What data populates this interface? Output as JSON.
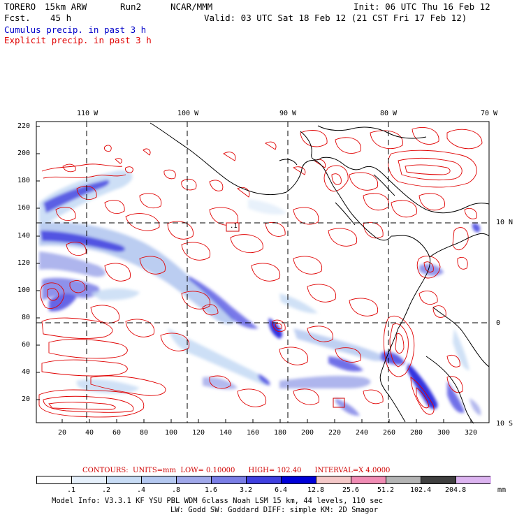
{
  "header": {
    "model": "TORERO",
    "resolution": "15km ARW",
    "run": "Run2",
    "org": "NCAR/MMM",
    "init": "Init: 06 UTC Thu 16 Feb 12",
    "fcst_label": "Fcst.",
    "fcst_value": "45 h",
    "valid": "Valid: 03 UTC Sat 18 Feb 12 (21 CST Fri 17 Feb 12)",
    "cumulus_label": "Cumulus precip. in past 3 h",
    "explicit_label": "Explicit precip. in past 3 h"
  },
  "colors": {
    "cumulus": "#0000c8",
    "explicit": "#e00000"
  },
  "map": {
    "lon_labels": [
      "110 W",
      "100 W",
      "90 W",
      "80 W",
      "70 W"
    ],
    "lat_labels": [
      "10 N",
      "0",
      "10 S"
    ],
    "y_ticks": [
      "220",
      "200",
      "180",
      "160",
      "140",
      "120",
      "100",
      "80",
      "60",
      "40",
      "20"
    ],
    "x_ticks": [
      "20",
      "40",
      "60",
      "80",
      "100",
      "120",
      "140",
      "160",
      "180",
      "200",
      "220",
      "240",
      "260",
      "280",
      "300",
      "320"
    ],
    "box_labels": [
      ".1"
    ]
  },
  "colorbar": {
    "labels": [
      ".1",
      ".2",
      ".4",
      ".8",
      "1.6",
      "3.2",
      "6.4",
      "12.8",
      "25.6",
      "51.2",
      "102.4",
      "204.8"
    ],
    "unit": "mm",
    "colors": [
      "#ffffff",
      "#e6f0fb",
      "#c8dcf5",
      "#b4c8f0",
      "#a0a8ea",
      "#7a7ee6",
      "#4040e0",
      "#0000d8",
      "#f4c8c8",
      "#f08cb4",
      "#b4b4b4",
      "#404040",
      "#dcb4f0"
    ]
  },
  "contours": {
    "label": "CONTOURS:",
    "units": "UNITS=mm",
    "low": "LOW= 0.10000",
    "high": "HIGH= 102.40",
    "interval": "INTERVAL=X 4.0000"
  },
  "footer": {
    "line1": "Model Info: V3.3.1    KF     YSU PBL   WDM 6class  Noah LSM  15 km,    44 levels,  110 sec",
    "line2": "LW: Godd SW: Goddard DIFF: simple KM: 2D Smagor"
  }
}
